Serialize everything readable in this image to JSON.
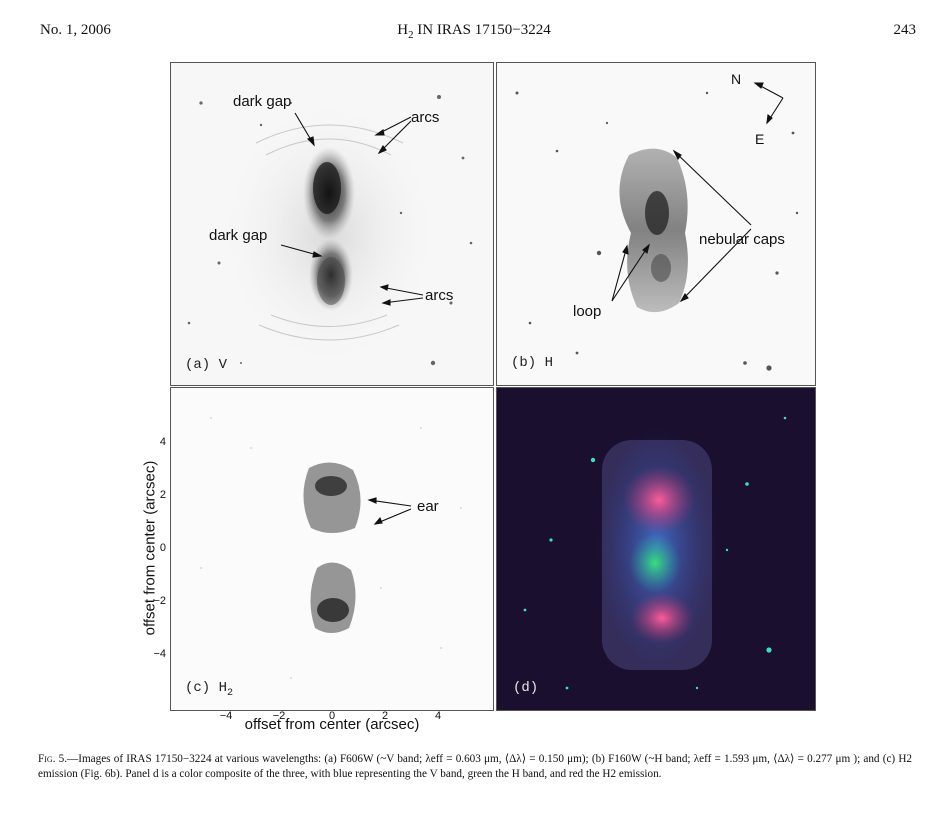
{
  "header": {
    "left": "No. 1, 2006",
    "title_pre": "H",
    "title_sub": "2",
    "title_post": " IN IRAS 17150−3224",
    "page": "243"
  },
  "panels": {
    "a": {
      "tag": "(a) V",
      "labels": {
        "gap_top": "dark gap",
        "gap_mid": "dark gap",
        "arcs_top": "arcs",
        "arcs_bottom": "arcs"
      }
    },
    "b": {
      "tag": "(b) H",
      "labels": {
        "north": "N",
        "east": "E",
        "caps": "nebular caps",
        "loop": "loop"
      }
    },
    "c": {
      "tag_pre": "(c) H",
      "tag_sub": "2",
      "labels": {
        "ear": "ear"
      }
    },
    "d": {
      "tag": "(d)"
    }
  },
  "axes": {
    "ylabel": "offset from center (arcsec)",
    "xlabel": "offset from center (arcsec)",
    "yticks": [
      "4",
      "2",
      "0",
      "−2",
      "−4"
    ],
    "xticks": [
      "−4",
      "−2",
      "0",
      "2",
      "4"
    ]
  },
  "caption": {
    "fig": "Fig. 5.",
    "text": "—Images of IRAS 17150−3224 at various wavelengths: (a) F606W (~V band; λeff = 0.603 μm, ⟨Δλ⟩ = 0.150 μm); (b) F160W (~H band; λeff = 1.593 μm, ⟨Δλ⟩ = 0.277 μm ); and (c) H2 emission (Fig. 6b). Panel d is a color composite of the three, with blue representing the V band, green the H band, and red the H2 emission."
  },
  "colors": {
    "blue_channel": "#4a8cff",
    "green_channel": "#38e07a",
    "red_channel": "#ff5c9a"
  }
}
